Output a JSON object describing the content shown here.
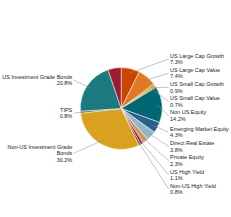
{
  "chart_data": {
    "type": "pie",
    "categories": [
      "US Large Cap Growth",
      "US Large Cap Value",
      "US Small Cap Growth",
      "US Small Cap Value",
      "Non US Equity",
      "Emerging Market Equity",
      "Direct Real Estate",
      "Private Equity",
      "US High Yield",
      "Non-US High Yield",
      "Non-US Investment Grade\nBonds",
      "TIPS",
      "US Investment Grade Bonds",
      null
    ],
    "values": [
      7.3,
      7.4,
      0.9,
      0.7,
      14.2,
      4.3,
      3.8,
      2.3,
      1.1,
      0.8,
      30.2,
      0.8,
      20.8,
      5.2
    ],
    "value_labels": [
      "7.3%",
      "7.4%",
      "0.9%",
      "0.7%",
      "14.2%",
      "4.3%",
      "3.8%",
      "2.3%",
      "1.1%",
      "0.8%",
      "30.2%",
      "0.8%",
      "20.8%",
      null
    ],
    "colors": [
      "#CC4400",
      "#E07825",
      "#C8A020",
      "#B8A000",
      "#006875",
      "#2B5F8E",
      "#8FB8CC",
      "#D4956A",
      "#8B1A2A",
      "#7A3010",
      "#DAA020",
      "#5A7A3A",
      "#1A7A80",
      "#9B1B30"
    ],
    "data_labels": true
  }
}
